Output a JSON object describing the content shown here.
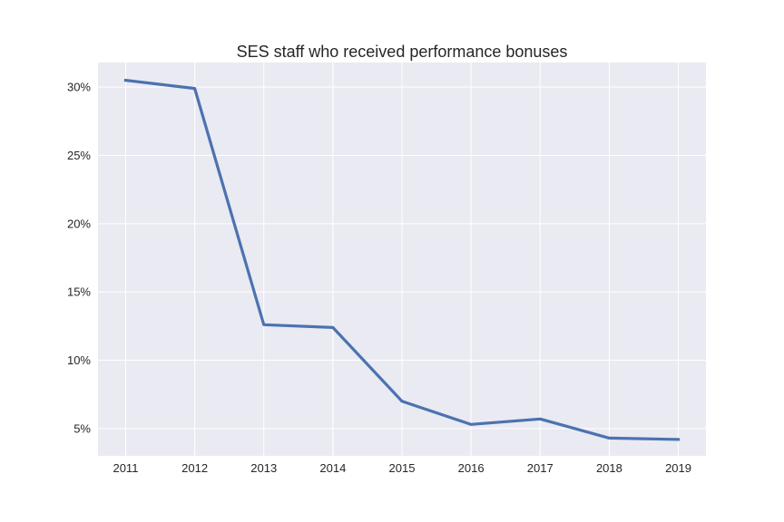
{
  "chart_data": {
    "type": "line",
    "title": "SES staff who received performance bonuses",
    "xlabel": "",
    "ylabel": "",
    "x": [
      2011,
      2012,
      2013,
      2014,
      2015,
      2016,
      2017,
      2018,
      2019
    ],
    "series": [
      {
        "values": [
          30.5,
          29.9,
          12.6,
          12.4,
          7.0,
          5.3,
          5.7,
          4.3,
          4.2
        ]
      }
    ],
    "x_ticks": [
      "2011",
      "2012",
      "2013",
      "2014",
      "2015",
      "2016",
      "2017",
      "2018",
      "2019"
    ],
    "y_ticks": [
      {
        "value": 5,
        "label": "5%"
      },
      {
        "value": 10,
        "label": "10%"
      },
      {
        "value": 15,
        "label": "15%"
      },
      {
        "value": 20,
        "label": "20%"
      },
      {
        "value": 25,
        "label": "25%"
      },
      {
        "value": 30,
        "label": "30%"
      }
    ],
    "xlim": [
      2010.6,
      2019.4
    ],
    "ylim": [
      3.0,
      31.8
    ],
    "grid": true,
    "legend": "none",
    "colors": {
      "plot_background": "#EAEAF2",
      "grid": "#FFFFFF",
      "series": "#4C72B0"
    }
  }
}
